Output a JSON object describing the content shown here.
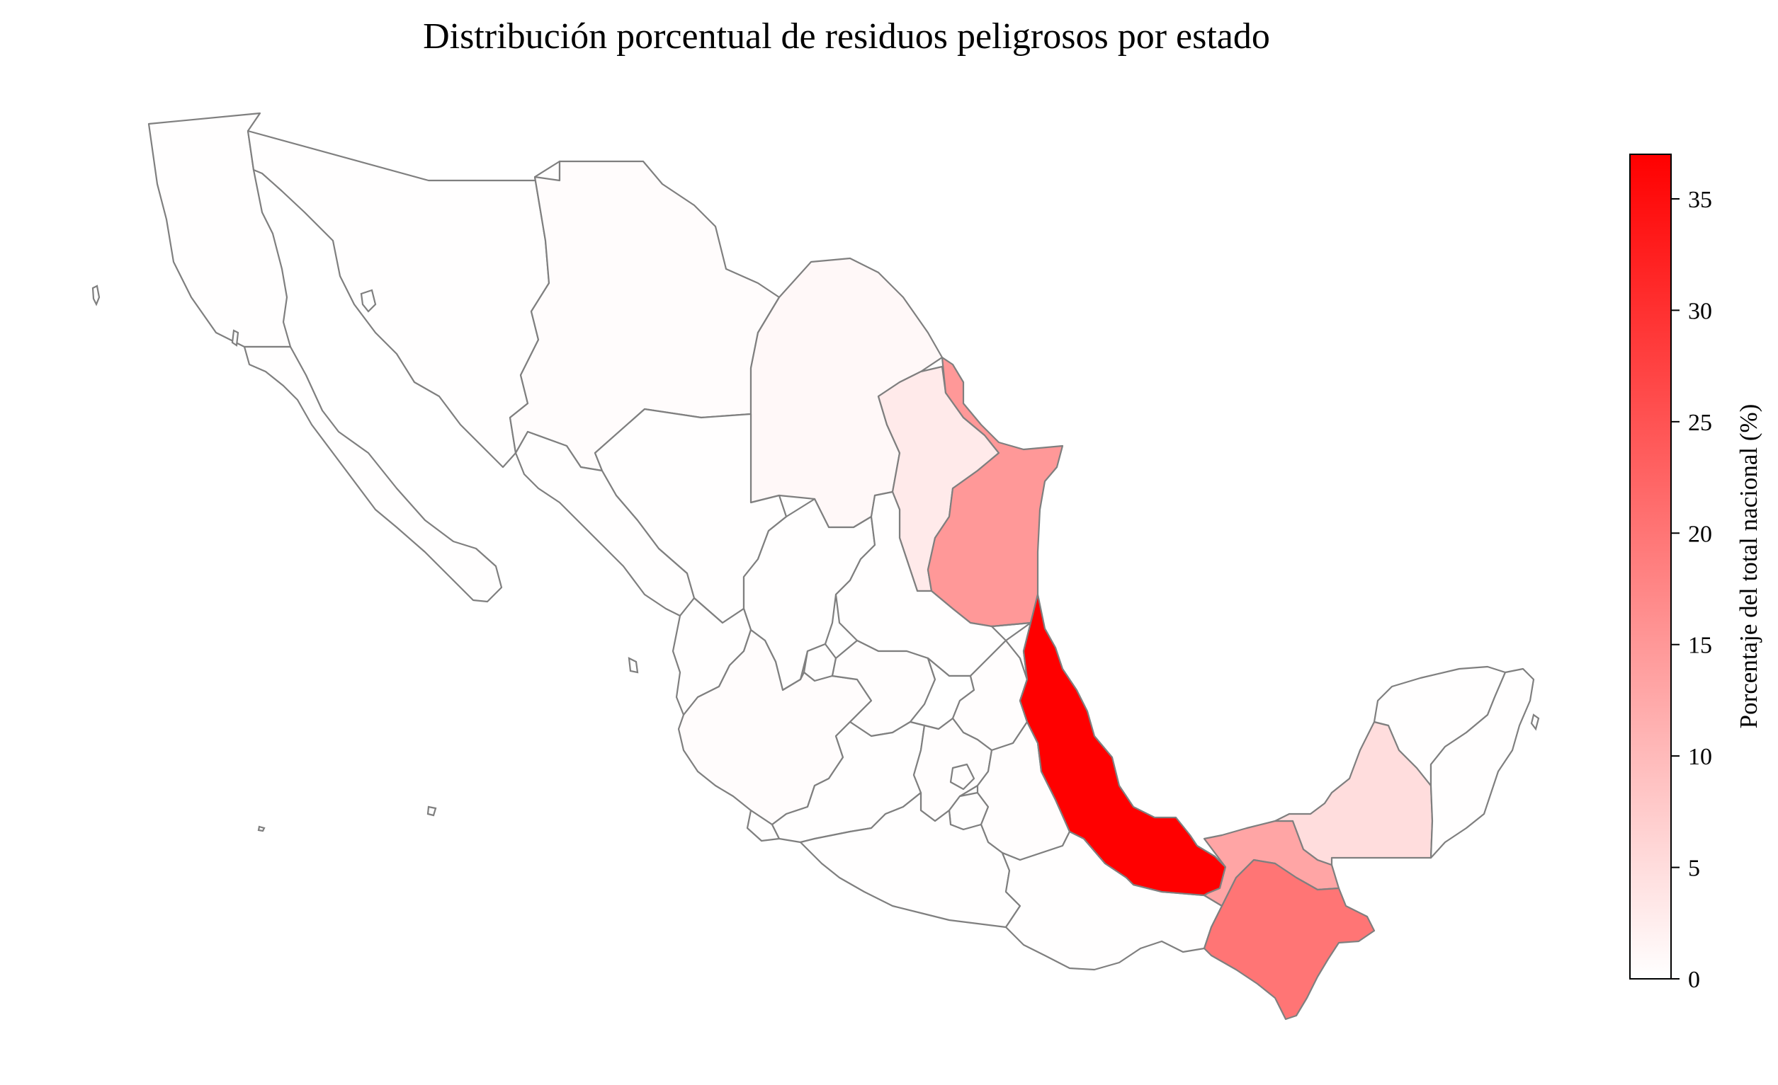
{
  "title": "Distribución porcentual de residuos peligrosos por estado",
  "colorbar": {
    "label": "Porcentaje del total nacional (%)",
    "min": 0,
    "max": 37,
    "ticks": [
      0,
      5,
      10,
      15,
      20,
      25,
      30,
      35
    ],
    "color_low": "#ffffff",
    "color_high": "#ff0000"
  },
  "states": [
    {
      "name": "Veracruz",
      "value": 37.0
    },
    {
      "name": "Chiapas",
      "value": 20.0
    },
    {
      "name": "Tamaulipas",
      "value": 15.0
    },
    {
      "name": "Tabasco",
      "value": 13.0
    },
    {
      "name": "Campeche",
      "value": 5.0
    },
    {
      "name": "Nuevo León",
      "value": 3.0
    },
    {
      "name": "Coahuila",
      "value": 1.0
    },
    {
      "name": "Jalisco",
      "value": 0.5
    },
    {
      "name": "Chihuahua",
      "value": 0.4
    },
    {
      "name": "Puebla",
      "value": 0.3
    },
    {
      "name": "Guanajuato",
      "value": 0.3
    },
    {
      "name": "Sinaloa",
      "value": 0.2
    },
    {
      "name": "Baja California",
      "value": 0.2
    },
    {
      "name": "Baja California Sur",
      "value": 0.1
    },
    {
      "name": "Sonora",
      "value": 0.2
    },
    {
      "name": "Durango",
      "value": 0.2
    },
    {
      "name": "Zacatecas",
      "value": 0.1
    },
    {
      "name": "San Luis Potosí",
      "value": 0.2
    },
    {
      "name": "Nayarit",
      "value": 0.1
    },
    {
      "name": "Aguascalientes",
      "value": 0.1
    },
    {
      "name": "Querétaro",
      "value": 0.2
    },
    {
      "name": "Hidalgo",
      "value": 0.3
    },
    {
      "name": "Michoacán",
      "value": 0.2
    },
    {
      "name": "Colima",
      "value": 0.1
    },
    {
      "name": "Estado de México",
      "value": 0.3
    },
    {
      "name": "Ciudad de México",
      "value": 0.3
    },
    {
      "name": "Morelos",
      "value": 0.2
    },
    {
      "name": "Tlaxcala",
      "value": 0.1
    },
    {
      "name": "Guerrero",
      "value": 0.1
    },
    {
      "name": "Oaxaca",
      "value": 0.2
    },
    {
      "name": "Yucatán",
      "value": 0.1
    },
    {
      "name": "Quintana Roo",
      "value": 0.1
    }
  ]
}
